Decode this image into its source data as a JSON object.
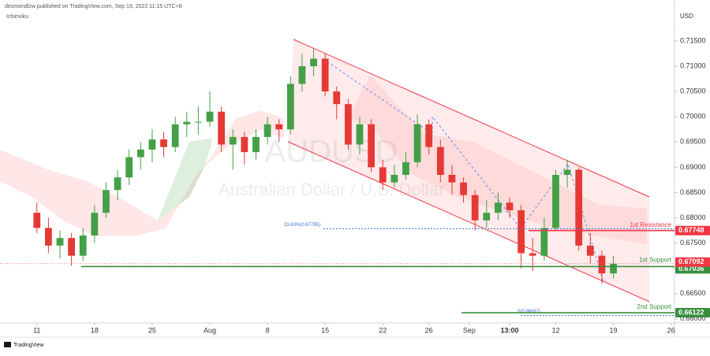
{
  "chart_data": {
    "type": "candlestick",
    "header": "desmondlzw published on TradingView.com, Sep 19, 2022 11:15 UTC+8",
    "indicator": "Ichimoku",
    "currency": "USD",
    "watermark": "AUDUSD",
    "watermark_subtitle": "Australian Dollar / U.S. Dollar",
    "footer": "TradingView",
    "up_color": "#43a047",
    "down_color": "#e53935",
    "open": [
      0.681,
      0.678,
      0.6745,
      0.676,
      0.6725,
      0.6765,
      0.681,
      0.6855,
      0.688,
      0.692,
      0.6935,
      0.6955,
      0.694,
      0.6985,
      0.699,
      0.699,
      0.701,
      0.6945,
      0.696,
      0.693,
      0.696,
      0.6985,
      0.6975,
      0.7065,
      0.71,
      0.7115,
      0.705,
      0.7025,
      0.6945,
      0.6985,
      0.69,
      0.687,
      0.6885,
      0.691,
      0.6985,
      0.694,
      0.6885,
      0.687,
      0.6845,
      0.6795,
      0.681,
      0.683,
      0.6815,
      0.673,
      0.6725,
      0.678,
      0.6885,
      0.6895,
      0.6745,
      0.6725,
      0.669
    ],
    "high": [
      0.683,
      0.68,
      0.6775,
      0.677,
      0.678,
      0.6825,
      0.687,
      0.6895,
      0.6935,
      0.695,
      0.6975,
      0.697,
      0.7,
      0.701,
      0.702,
      0.705,
      0.702,
      0.6975,
      0.697,
      0.6975,
      0.7,
      0.6995,
      0.708,
      0.7125,
      0.7135,
      0.7125,
      0.706,
      0.7035,
      0.7,
      0.6995,
      0.6915,
      0.6905,
      0.693,
      0.7005,
      0.6995,
      0.6955,
      0.6905,
      0.688,
      0.6855,
      0.6835,
      0.685,
      0.684,
      0.6825,
      0.676,
      0.68,
      0.6895,
      0.6915,
      0.69,
      0.677,
      0.6735,
      0.6725
    ],
    "low": [
      0.677,
      0.673,
      0.672,
      0.6705,
      0.6715,
      0.675,
      0.68,
      0.6835,
      0.6865,
      0.6895,
      0.691,
      0.692,
      0.693,
      0.696,
      0.6965,
      0.698,
      0.693,
      0.6895,
      0.6905,
      0.6915,
      0.6945,
      0.695,
      0.6965,
      0.705,
      0.708,
      0.704,
      0.6995,
      0.6935,
      0.6925,
      0.689,
      0.6855,
      0.686,
      0.6875,
      0.69,
      0.6925,
      0.687,
      0.6845,
      0.683,
      0.6775,
      0.678,
      0.6795,
      0.68,
      0.67,
      0.6695,
      0.6715,
      0.6775,
      0.686,
      0.6735,
      0.671,
      0.667,
      0.668
    ],
    "close": [
      0.678,
      0.6745,
      0.676,
      0.6725,
      0.6765,
      0.681,
      0.6855,
      0.688,
      0.692,
      0.6935,
      0.6955,
      0.694,
      0.6985,
      0.699,
      0.699,
      0.701,
      0.6945,
      0.696,
      0.693,
      0.696,
      0.6985,
      0.6975,
      0.7065,
      0.71,
      0.7115,
      0.705,
      0.7025,
      0.6945,
      0.6985,
      0.69,
      0.687,
      0.6885,
      0.691,
      0.6985,
      0.694,
      0.6885,
      0.687,
      0.6845,
      0.6795,
      0.681,
      0.683,
      0.6815,
      0.673,
      0.6725,
      0.678,
      0.6885,
      0.6895,
      0.6745,
      0.6725,
      0.669,
      0.67092
    ],
    "xlim": [
      -3.2,
      55.3
    ],
    "xticks": [
      {
        "value": 0,
        "label": "11"
      },
      {
        "value": 5,
        "label": "18"
      },
      {
        "value": 10,
        "label": "25"
      },
      {
        "value": 15,
        "label": "Aug"
      },
      {
        "value": 20,
        "label": "8"
      },
      {
        "value": 25,
        "label": "15"
      },
      {
        "value": 30,
        "label": "22"
      },
      {
        "value": 34,
        "label": "26"
      },
      {
        "value": 37.5,
        "label": "Sep"
      },
      {
        "value": 41,
        "label": "13:00"
      },
      {
        "value": 45,
        "label": "12"
      },
      {
        "value": 50,
        "label": "19"
      },
      {
        "value": 55,
        "label": "26"
      }
    ],
    "ylim": [
      0.6592,
      0.7231
    ],
    "yticks": [
      {
        "value": 0.66,
        "label": "0.66000"
      },
      {
        "value": 0.665,
        "label": "0.66500"
      },
      {
        "value": 0.67,
        "label": "0.67000"
      },
      {
        "value": 0.675,
        "label": "0.67500"
      },
      {
        "value": 0.68,
        "label": "0.68000"
      },
      {
        "value": 0.685,
        "label": "0.68500"
      },
      {
        "value": 0.69,
        "label": "0.69000"
      },
      {
        "value": 0.695,
        "label": "0.69500"
      },
      {
        "value": 0.7,
        "label": "0.70000"
      },
      {
        "value": 0.705,
        "label": "0.70500"
      },
      {
        "value": 0.71,
        "label": "0.71000"
      },
      {
        "value": 0.715,
        "label": "0.71500"
      }
    ],
    "levels": [
      {
        "label": "1st Resistance",
        "value": 0.67748,
        "color": "#f23645"
      },
      {
        "label": "1st Support",
        "value": 0.67036,
        "color": "#388e3c"
      },
      {
        "label": "2nd Support",
        "value": 0.66122,
        "color": "#388e3c"
      }
    ],
    "last_price": 0.67092,
    "fib_levels": [
      {
        "label": "23.60%(0.67785)",
        "value": 0.67785
      },
      {
        "label": "0(0.66067)",
        "value": 0.66067
      }
    ]
  }
}
